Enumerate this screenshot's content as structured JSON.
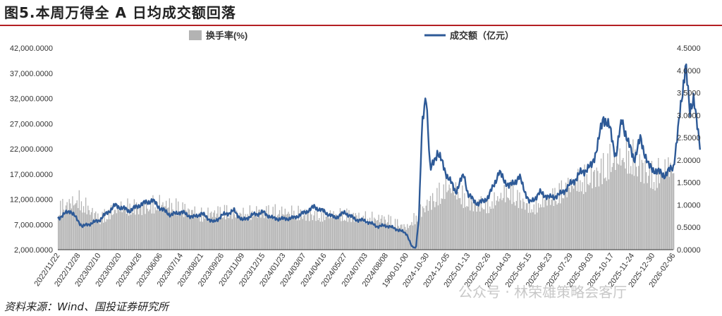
{
  "figure": {
    "title": "图5.本周万得全 A 日均成交额回落",
    "source": "资料来源：Wind、国投证券研究所",
    "watermark": "公众号 · 林荣雄策略会客厅"
  },
  "colors": {
    "turnover": "#b3b3b3",
    "amount": "#2e5a97",
    "title_rule": "#b41f24"
  },
  "chart_data": {
    "type": "bar+line",
    "legend_position": "top",
    "grid": false,
    "x_tick_labels": [
      "2022/11/22",
      "2022/12/28",
      "2023/02/10",
      "2023/03/20",
      "2023/04/26",
      "2023/06/06",
      "2023/07/14",
      "2023/08/21",
      "2023/09/26",
      "2023/11/09",
      "2023/12/15",
      "2024/01/23",
      "2024/03/07",
      "2024/04/16",
      "2024/05/27",
      "2024/07/03",
      "2024/08/08",
      "1900-01-00",
      "2024-10-30",
      "2024-12-05",
      "2025-01-13",
      "2025-02-26",
      "2025-04-03",
      "2025-05-15",
      "2025-06-23",
      "2025-07-29",
      "2025-09-03",
      "2025-10-17",
      "2025-11-24",
      "2025-12-30",
      "2026-02-06"
    ],
    "y_left": {
      "ticks": [
        "2,000.0000",
        "7,000.0000",
        "12,000.0000",
        "17,000.0000",
        "22,000.0000",
        "27,000.0000",
        "32,000.0000",
        "37,000.0000",
        "42,000.0000"
      ],
      "min": 2000,
      "max": 42000
    },
    "y_right": {
      "ticks": [
        "0.0000",
        "0.5000",
        "1.0000",
        "1.5000",
        "2.0000",
        "2.5000",
        "3.0000",
        "3.5000",
        "4.0000",
        "4.5000"
      ],
      "min": 0,
      "max": 4.5
    },
    "series": [
      {
        "name": "换手率(%)",
        "type": "bar",
        "axis": "right",
        "color": "#b3b3b3",
        "anchors": [
          [
            0,
            0.95
          ],
          [
            1,
            1.12
          ],
          [
            2,
            0.72
          ],
          [
            3,
            0.95
          ],
          [
            4,
            0.98
          ],
          [
            5,
            1.05
          ],
          [
            6,
            0.95
          ],
          [
            7,
            0.78
          ],
          [
            8,
            0.88
          ],
          [
            9,
            0.8
          ],
          [
            10,
            0.88
          ],
          [
            11,
            0.85
          ],
          [
            12,
            0.82
          ],
          [
            13,
            0.78
          ],
          [
            14,
            0.8
          ],
          [
            15,
            0.72
          ],
          [
            16,
            0.7
          ],
          [
            17,
            0.5
          ],
          [
            18,
            1.05
          ],
          [
            19,
            1.45
          ],
          [
            20,
            1.1
          ],
          [
            21,
            1.02
          ],
          [
            22,
            1.35
          ],
          [
            23,
            0.95
          ],
          [
            24,
            1.18
          ],
          [
            25,
            1.48
          ],
          [
            26,
            1.65
          ],
          [
            27,
            2.05
          ],
          [
            28,
            2.1
          ],
          [
            29,
            1.65
          ],
          [
            30,
            1.95
          ],
          [
            31,
            1.85
          ]
        ]
      },
      {
        "name": "成交额（亿元）",
        "type": "line",
        "axis": "left",
        "color": "#2e5a97",
        "anchors": [
          [
            0,
            8200
          ],
          [
            0.6,
            9800
          ],
          [
            1.2,
            6600
          ],
          [
            2,
            7800
          ],
          [
            2.8,
            10800
          ],
          [
            3.5,
            9700
          ],
          [
            4,
            10900
          ],
          [
            4.6,
            11800
          ],
          [
            5,
            10200
          ],
          [
            5.5,
            8900
          ],
          [
            6,
            9500
          ],
          [
            6.6,
            8400
          ],
          [
            7,
            9200
          ],
          [
            7.6,
            7400
          ],
          [
            8,
            8800
          ],
          [
            8.6,
            9700
          ],
          [
            9,
            7800
          ],
          [
            9.5,
            8900
          ],
          [
            10,
            9400
          ],
          [
            10.5,
            8200
          ],
          [
            11,
            8100
          ],
          [
            11.5,
            8300
          ],
          [
            12,
            9300
          ],
          [
            12.5,
            10500
          ],
          [
            13,
            9500
          ],
          [
            13.5,
            8300
          ],
          [
            14,
            9400
          ],
          [
            14.5,
            8000
          ],
          [
            15,
            7700
          ],
          [
            15.6,
            6600
          ],
          [
            16,
            6800
          ],
          [
            16.5,
            6100
          ],
          [
            17,
            5200
          ],
          [
            17.25,
            2600
          ],
          [
            17.45,
            2300
          ],
          [
            17.6,
            8500
          ],
          [
            17.75,
            26000
          ],
          [
            17.95,
            33500
          ],
          [
            18.15,
            17500
          ],
          [
            18.5,
            21500
          ],
          [
            19,
            16500
          ],
          [
            19.4,
            13500
          ],
          [
            19.8,
            17000
          ],
          [
            20,
            12800
          ],
          [
            20.5,
            11000
          ],
          [
            21,
            12500
          ],
          [
            21.5,
            17300
          ],
          [
            22,
            14500
          ],
          [
            22.5,
            16400
          ],
          [
            23,
            11200
          ],
          [
            23.5,
            13300
          ],
          [
            24,
            12300
          ],
          [
            24.5,
            13000
          ],
          [
            25,
            15000
          ],
          [
            25.5,
            17300
          ],
          [
            26,
            18500
          ],
          [
            26.3,
            22500
          ],
          [
            26.6,
            28500
          ],
          [
            26.9,
            26000
          ],
          [
            27.2,
            20500
          ],
          [
            27.5,
            28000
          ],
          [
            27.8,
            23000
          ],
          [
            28.1,
            20000
          ],
          [
            28.4,
            24000
          ],
          [
            28.8,
            18500
          ],
          [
            29.2,
            17500
          ],
          [
            29.6,
            16800
          ],
          [
            30,
            18500
          ],
          [
            30.2,
            24500
          ],
          [
            30.45,
            33500
          ],
          [
            30.6,
            39500
          ],
          [
            30.8,
            28500
          ],
          [
            31,
            33000
          ],
          [
            31.2,
            25000
          ],
          [
            31.3,
            22000
          ]
        ]
      }
    ]
  }
}
